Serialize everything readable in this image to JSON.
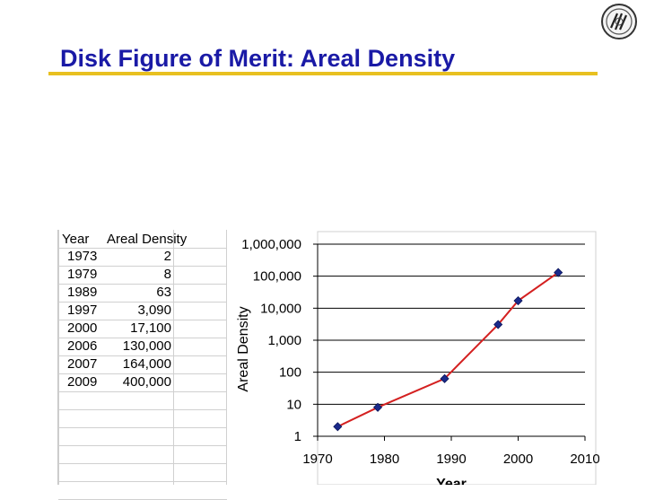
{
  "slide": {
    "title": "Disk Figure of Merit: Areal Density"
  },
  "table": {
    "headers": [
      "Year",
      "Areal Density"
    ],
    "rows": [
      {
        "year": "1973",
        "value": "2"
      },
      {
        "year": "1979",
        "value": "8"
      },
      {
        "year": "1989",
        "value": "63"
      },
      {
        "year": "1997",
        "value": "3,090"
      },
      {
        "year": "2000",
        "value": "17,100"
      },
      {
        "year": "2006",
        "value": "130,000"
      },
      {
        "year": "2007",
        "value": "164,000"
      },
      {
        "year": "2009",
        "value": "400,000"
      }
    ]
  },
  "colors": {
    "title": "#1a1aa6",
    "rule": "#e8c020",
    "line": "#d42020",
    "marker": "#1a2a8a"
  },
  "chart_data": {
    "type": "line",
    "title": "",
    "xlabel": "Year",
    "ylabel": "Areal Density",
    "y_scale": "log",
    "x": [
      1973,
      1979,
      1989,
      1997,
      2000,
      2006
    ],
    "values": [
      2,
      8,
      63,
      3090,
      17100,
      130000
    ],
    "xlim": [
      1970,
      2010
    ],
    "ylim": [
      1,
      1000000
    ],
    "x_ticks": [
      1970,
      1980,
      1990,
      2000,
      2010
    ],
    "x_tick_labels": [
      "1970",
      "1980",
      "1990",
      "2000",
      "2010"
    ],
    "y_ticks": [
      1,
      10,
      100,
      1000,
      10000,
      100000,
      1000000
    ],
    "y_tick_labels": [
      "1",
      "10",
      "100",
      "1,000",
      "10,000",
      "100,000",
      "1,000,000"
    ],
    "grid": true,
    "legend": "none"
  }
}
